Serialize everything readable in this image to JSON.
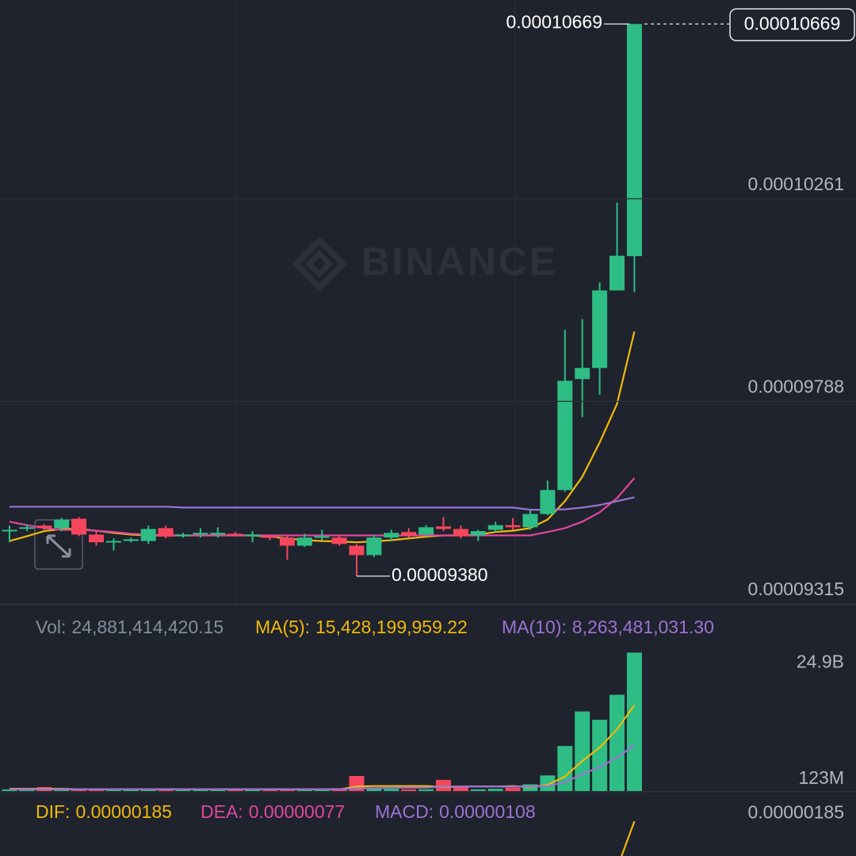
{
  "chart_data": [
    {
      "type": "candlestick",
      "watermark": "BINANCE",
      "up_color": "#2ebd85",
      "down_color": "#f6465d",
      "grid": true,
      "open": [
        9.485e-05,
        9.492e-05,
        9.498e-05,
        9.492e-05,
        9.514e-05,
        9.477e-05,
        9.459e-05,
        9.462e-05,
        9.462e-05,
        9.492e-05,
        9.473e-05,
        9.477e-05,
        9.477e-05,
        9.479e-05,
        9.473e-05,
        9.473e-05,
        9.47e-05,
        9.451e-05,
        9.47e-05,
        9.47e-05,
        9.451e-05,
        9.429e-05,
        9.47e-05,
        9.483e-05,
        9.477e-05,
        9.496e-05,
        9.49e-05,
        9.475e-05,
        9.488e-05,
        9.499e-05,
        9.494e-05,
        9.525e-05,
        9.581e-05,
        9.84e-05,
        9.866e-05,
        0.00010047,
        0.00010127
      ],
      "high": [
        9.498e-05,
        9.501e-05,
        9.501e-05,
        9.516e-05,
        9.518e-05,
        9.485e-05,
        9.468e-05,
        9.47e-05,
        9.498e-05,
        9.498e-05,
        9.481e-05,
        9.492e-05,
        9.494e-05,
        9.483e-05,
        9.485e-05,
        9.477e-05,
        9.475e-05,
        9.479e-05,
        9.488e-05,
        9.477e-05,
        9.455e-05,
        9.477e-05,
        9.488e-05,
        9.492e-05,
        9.499e-05,
        9.518e-05,
        9.498e-05,
        9.488e-05,
        9.507e-05,
        9.516e-05,
        9.533e-05,
        9.603e-05,
        9.955e-05,
        9.98e-05,
        0.00010066,
        0.00010252,
        0.00010669
      ],
      "low": [
        9.459e-05,
        9.485e-05,
        9.488e-05,
        9.485e-05,
        9.473e-05,
        9.451e-05,
        9.44e-05,
        9.459e-05,
        9.455e-05,
        9.468e-05,
        9.47e-05,
        9.47e-05,
        9.47e-05,
        9.472e-05,
        9.459e-05,
        9.464e-05,
        9.418e-05,
        9.448e-05,
        9.464e-05,
        9.451e-05,
        9.38e-05,
        9.424e-05,
        9.461e-05,
        9.47e-05,
        9.473e-05,
        9.485e-05,
        9.468e-05,
        9.462e-05,
        9.483e-05,
        9.488e-05,
        9.488e-05,
        9.522e-05,
        9.577e-05,
        9.751e-05,
        9.803e-05,
        0.00010047,
        0.00010043
      ],
      "close": [
        9.488e-05,
        9.494e-05,
        9.492e-05,
        9.512e-05,
        9.477e-05,
        9.459e-05,
        9.462e-05,
        9.466e-05,
        9.49e-05,
        9.472e-05,
        9.477e-05,
        9.481e-05,
        9.481e-05,
        9.475e-05,
        9.477e-05,
        9.47e-05,
        9.451e-05,
        9.47e-05,
        9.473e-05,
        9.455e-05,
        9.429e-05,
        9.47e-05,
        9.481e-05,
        9.475e-05,
        9.494e-05,
        9.49e-05,
        9.473e-05,
        9.485e-05,
        9.499e-05,
        9.494e-05,
        9.525e-05,
        9.581e-05,
        9.836e-05,
        9.866e-05,
        0.00010047,
        0.00010128,
        0.00010669
      ],
      "series": [
        {
          "color": "#f0b90b",
          "values": [
            9.462e-05,
            9.473e-05,
            9.485e-05,
            9.49e-05,
            9.49e-05,
            9.486e-05,
            9.481e-05,
            9.477e-05,
            9.475e-05,
            9.475e-05,
            9.475e-05,
            9.475e-05,
            9.475e-05,
            9.475e-05,
            9.475e-05,
            9.472e-05,
            9.468e-05,
            9.464e-05,
            9.462e-05,
            9.461e-05,
            9.459e-05,
            9.461e-05,
            9.464e-05,
            9.468e-05,
            9.472e-05,
            9.475e-05,
            9.475e-05,
            9.477e-05,
            9.483e-05,
            9.486e-05,
            9.492e-05,
            9.512e-05,
            9.555e-05,
            9.612e-05,
            9.692e-05,
            9.782e-05,
            9.951e-05
          ]
        },
        {
          "color": "#e0479e",
          "values": [
            9.507e-05,
            9.499e-05,
            9.492e-05,
            9.488e-05,
            9.488e-05,
            9.486e-05,
            9.483e-05,
            9.479e-05,
            9.477e-05,
            9.475e-05,
            9.475e-05,
            9.475e-05,
            9.475e-05,
            9.475e-05,
            9.475e-05,
            9.475e-05,
            9.475e-05,
            9.475e-05,
            9.475e-05,
            9.475e-05,
            9.475e-05,
            9.475e-05,
            9.475e-05,
            9.475e-05,
            9.475e-05,
            9.475e-05,
            9.475e-05,
            9.475e-05,
            9.475e-05,
            9.475e-05,
            9.475e-05,
            9.483e-05,
            9.492e-05,
            9.507e-05,
            9.529e-05,
            9.562e-05,
            9.609e-05
          ]
        },
        {
          "color": "#9b73d3",
          "values": [
            9.542e-05,
            9.542e-05,
            9.542e-05,
            9.542e-05,
            9.542e-05,
            9.542e-05,
            9.542e-05,
            9.542e-05,
            9.542e-05,
            9.542e-05,
            9.54e-05,
            9.54e-05,
            9.54e-05,
            9.54e-05,
            9.54e-05,
            9.54e-05,
            9.54e-05,
            9.54e-05,
            9.54e-05,
            9.54e-05,
            9.54e-05,
            9.54e-05,
            9.54e-05,
            9.54e-05,
            9.54e-05,
            9.54e-05,
            9.54e-05,
            9.54e-05,
            9.54e-05,
            9.54e-05,
            9.535e-05,
            9.535e-05,
            9.536e-05,
            9.54e-05,
            9.546e-05,
            9.555e-05,
            9.564e-05
          ]
        }
      ],
      "ylim": [
        9.315e-05,
        0.00010725
      ],
      "yticks": [
        9.315e-05,
        9.788e-05,
        0.00010261
      ],
      "price_line": {
        "value": 0.00010669
      },
      "high_marker": {
        "value": 0.00010669
      },
      "low_marker": {
        "value": 9.38e-05,
        "label": "0.00009380"
      }
    },
    {
      "type": "bar",
      "readout": [
        {
          "label": "Vol:",
          "value": "24,881,414,420.15",
          "color": "#848e9c"
        },
        {
          "label": "MA(5):",
          "value": "15,428,199,959.22",
          "color": "#f0b90b"
        },
        {
          "label": "MA(10):",
          "value": "8,263,481,031.30",
          "color": "#9b73d3"
        }
      ],
      "values": [
        300000000,
        300000000,
        700000000,
        300000000,
        300000000,
        300000000,
        300000000,
        200000000,
        200000000,
        200000000,
        200000000,
        200000000,
        300000000,
        200000000,
        200000000,
        400000000,
        300000000,
        200000000,
        300000000,
        500000000,
        2700000000,
        500000000,
        400000000,
        300000000,
        300000000,
        2000000000,
        800000000,
        300000000,
        400000000,
        600000000,
        1200000000,
        2800000000,
        8100000000,
        14300000000,
        12800000000,
        17300000000,
        24881414420.15
      ],
      "series": [
        {
          "color": "#f0b90b",
          "values": [
            400000000,
            400000000,
            400000000,
            400000000,
            300000000,
            300000000,
            300000000,
            300000000,
            300000000,
            300000000,
            300000000,
            300000000,
            300000000,
            300000000,
            300000000,
            300000000,
            300000000,
            300000000,
            300000000,
            300000000,
            800000000,
            900000000,
            900000000,
            900000000,
            900000000,
            700000000,
            800000000,
            800000000,
            800000000,
            900000000,
            700000000,
            1100000000,
            2600000000,
            5400000000,
            7800000000,
            11100000000,
            15428199959.22
          ]
        },
        {
          "color": "#9b73d3",
          "values": [
            300000000,
            300000000,
            300000000,
            300000000,
            300000000,
            300000000,
            300000000,
            300000000,
            300000000,
            300000000,
            300000000,
            300000000,
            300000000,
            300000000,
            300000000,
            300000000,
            300000000,
            300000000,
            300000000,
            300000000,
            500000000,
            500000000,
            600000000,
            600000000,
            600000000,
            800000000,
            800000000,
            800000000,
            800000000,
            800000000,
            800000000,
            900000000,
            1600000000,
            3000000000,
            4300000000,
            6000000000,
            8263481031.3
          ]
        }
      ],
      "ylim": [
        0,
        26500000000
      ],
      "yticks": [
        {
          "value": 123000000,
          "label": "123M"
        },
        {
          "value": 24900000000,
          "label": "24.9B"
        }
      ]
    },
    {
      "type": "line",
      "readout": [
        {
          "label": "DIF:",
          "value": "0.00000185",
          "color": "#f0b90b"
        },
        {
          "label": "DEA:",
          "value": "0.00000077",
          "color": "#e0479e"
        },
        {
          "label": "MACD:",
          "value": "0.00000108",
          "color": "#9b73d3"
        }
      ],
      "series": [
        {
          "color": "#f0b90b",
          "values": [
            null,
            null,
            null,
            null,
            null,
            null,
            null,
            null,
            null,
            null,
            null,
            null,
            null,
            null,
            null,
            null,
            null,
            null,
            null,
            null,
            null,
            null,
            null,
            null,
            null,
            null,
            null,
            null,
            null,
            null,
            null,
            null,
            null,
            null,
            null,
            1.24e-06,
            1.85e-06
          ]
        }
      ],
      "ylim": [
        1.4e-06,
        2.1e-06
      ],
      "yticks": [
        1.85e-06
      ]
    }
  ]
}
